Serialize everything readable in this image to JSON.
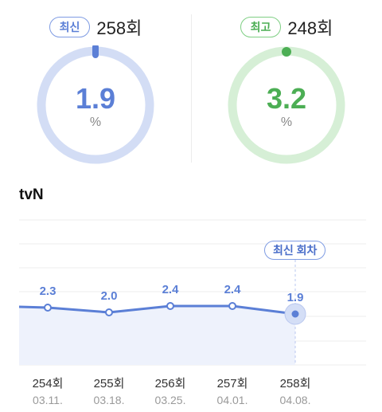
{
  "latest": {
    "badge": "최신",
    "episode": "258회",
    "rating": "1.9",
    "unit": "%",
    "fraction": 0.019,
    "color": "#5b7fd6"
  },
  "best": {
    "badge": "최고",
    "episode": "248회",
    "rating": "3.2",
    "unit": "%",
    "fraction": 0.032,
    "color": "#4cae54"
  },
  "channel": "tvN",
  "latest_marker": "최신 회차",
  "chart_data": {
    "type": "line",
    "categories": [
      "254회",
      "255회",
      "256회",
      "257회",
      "258회"
    ],
    "dates": [
      "03.11.",
      "03.18.",
      "03.25.",
      "04.01.",
      "04.08."
    ],
    "values": [
      2.3,
      2.0,
      2.4,
      2.4,
      1.9
    ],
    "value_labels": [
      "2.3",
      "2.0",
      "2.4",
      "2.4",
      "1.9"
    ],
    "color": "#5b7fd6"
  }
}
